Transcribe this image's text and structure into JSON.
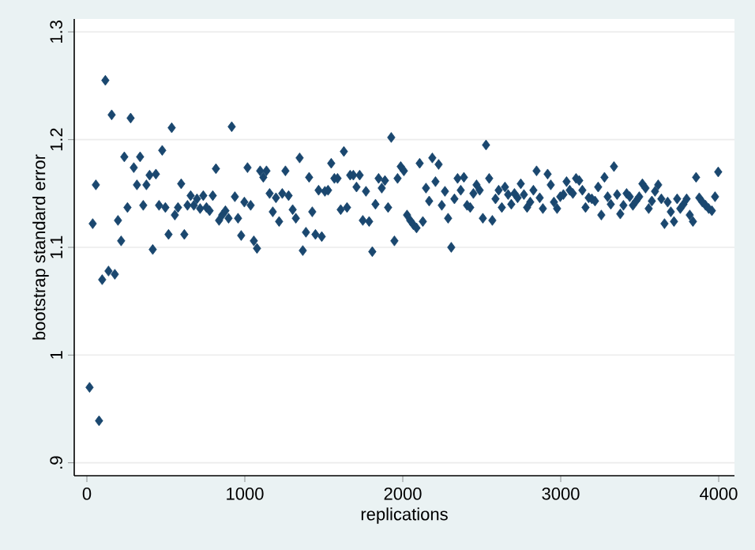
{
  "chart_data": {
    "type": "scatter",
    "xlabel": "replications",
    "ylabel": "bootstrap standard error",
    "x": [
      17,
      37,
      57,
      77,
      97,
      117,
      137,
      157,
      177,
      197,
      217,
      237,
      257,
      277,
      297,
      317,
      337,
      357,
      377,
      397,
      417,
      437,
      457,
      477,
      497,
      517,
      537,
      557,
      577,
      597,
      617,
      637,
      657,
      677,
      697,
      717,
      737,
      757,
      777,
      797,
      817,
      837,
      857,
      877,
      897,
      917,
      937,
      957,
      977,
      997,
      1017,
      1037,
      1057,
      1077,
      1097,
      1117,
      1137,
      1157,
      1177,
      1197,
      1217,
      1237,
      1257,
      1277,
      1303,
      1323,
      1347,
      1367,
      1387,
      1407,
      1427,
      1447,
      1467,
      1487,
      1507,
      1527,
      1547,
      1567,
      1587,
      1607,
      1627,
      1647,
      1667,
      1687,
      1707,
      1727,
      1747,
      1767,
      1787,
      1807,
      1827,
      1847,
      1867,
      1887,
      1907,
      1927,
      1947,
      1967,
      1987,
      2007,
      2027,
      2047,
      2067,
      2087,
      2107,
      2127,
      2147,
      2167,
      2187,
      2207,
      2227,
      2247,
      2267,
      2287,
      2307,
      2327,
      2347,
      2367,
      2387,
      2407,
      2427,
      2447,
      2467,
      2487,
      2507,
      2527,
      2547,
      2567,
      2587,
      2607,
      2627,
      2647,
      2667,
      2687,
      2707,
      2727,
      2747,
      2767,
      2787,
      2807,
      2827,
      2847,
      2867,
      2887,
      2917,
      2937,
      2957,
      2977,
      2997,
      3017,
      3037,
      3057,
      3077,
      3097,
      3117,
      3137,
      3157,
      3177,
      3197,
      3217,
      3237,
      3257,
      3277,
      3297,
      3317,
      3337,
      3357,
      3377,
      3397,
      3417,
      3437,
      3457,
      3477,
      3497,
      3517,
      3537,
      3557,
      3577,
      3597,
      3617,
      3637,
      3657,
      3677,
      3697,
      3717,
      3737,
      3757,
      3777,
      3797,
      3817,
      3837,
      3857,
      3877,
      3897,
      3917,
      3937,
      3957,
      3977,
      3997
    ],
    "values": [
      0.97,
      1.122,
      1.158,
      0.939,
      1.07,
      1.255,
      1.078,
      1.223,
      1.075,
      1.125,
      1.106,
      1.184,
      1.137,
      1.22,
      1.174,
      1.158,
      1.184,
      1.139,
      1.158,
      1.167,
      1.098,
      1.168,
      1.139,
      1.19,
      1.137,
      1.112,
      1.211,
      1.13,
      1.137,
      1.159,
      1.112,
      1.139,
      1.148,
      1.139,
      1.145,
      1.136,
      1.148,
      1.137,
      1.134,
      1.148,
      1.173,
      1.125,
      1.13,
      1.134,
      1.127,
      1.212,
      1.147,
      1.127,
      1.111,
      1.142,
      1.174,
      1.139,
      1.106,
      1.099,
      1.171,
      1.165,
      1.171,
      1.15,
      1.133,
      1.146,
      1.124,
      1.15,
      1.171,
      1.148,
      1.135,
      1.127,
      1.183,
      1.097,
      1.114,
      1.165,
      1.133,
      1.112,
      1.153,
      1.11,
      1.152,
      1.153,
      1.178,
      1.164,
      1.164,
      1.135,
      1.189,
      1.137,
      1.167,
      1.167,
      1.156,
      1.167,
      1.125,
      1.152,
      1.124,
      1.096,
      1.14,
      1.164,
      1.155,
      1.162,
      1.137,
      1.202,
      1.106,
      1.164,
      1.175,
      1.171,
      1.13,
      1.125,
      1.121,
      1.118,
      1.178,
      1.124,
      1.155,
      1.143,
      1.183,
      1.161,
      1.177,
      1.139,
      1.152,
      1.127,
      1.1,
      1.145,
      1.164,
      1.153,
      1.165,
      1.139,
      1.137,
      1.15,
      1.158,
      1.153,
      1.127,
      1.195,
      1.164,
      1.125,
      1.145,
      1.153,
      1.137,
      1.156,
      1.149,
      1.14,
      1.15,
      1.146,
      1.159,
      1.149,
      1.137,
      1.142,
      1.153,
      1.171,
      1.146,
      1.136,
      1.168,
      1.158,
      1.142,
      1.136,
      1.147,
      1.149,
      1.161,
      1.153,
      1.15,
      1.164,
      1.162,
      1.153,
      1.137,
      1.146,
      1.145,
      1.143,
      1.156,
      1.13,
      1.165,
      1.147,
      1.14,
      1.175,
      1.149,
      1.131,
      1.139,
      1.15,
      1.147,
      1.139,
      1.143,
      1.147,
      1.159,
      1.155,
      1.136,
      1.143,
      1.152,
      1.158,
      1.145,
      1.122,
      1.142,
      1.133,
      1.124,
      1.145,
      1.136,
      1.14,
      1.145,
      1.13,
      1.124,
      1.165,
      1.146,
      1.142,
      1.139,
      1.136,
      1.134,
      1.147,
      1.17
    ],
    "color": "#1a476f",
    "marker": "diamond",
    "grid": "y",
    "xlim": [
      -80,
      4100
    ],
    "ylim": [
      0.888,
      1.312
    ],
    "xticks": [
      0,
      1000,
      2000,
      3000,
      4000
    ],
    "yticks": [
      {
        "value": 0.9,
        "label": ".9"
      },
      1,
      1.1,
      1.2,
      1.3
    ]
  }
}
